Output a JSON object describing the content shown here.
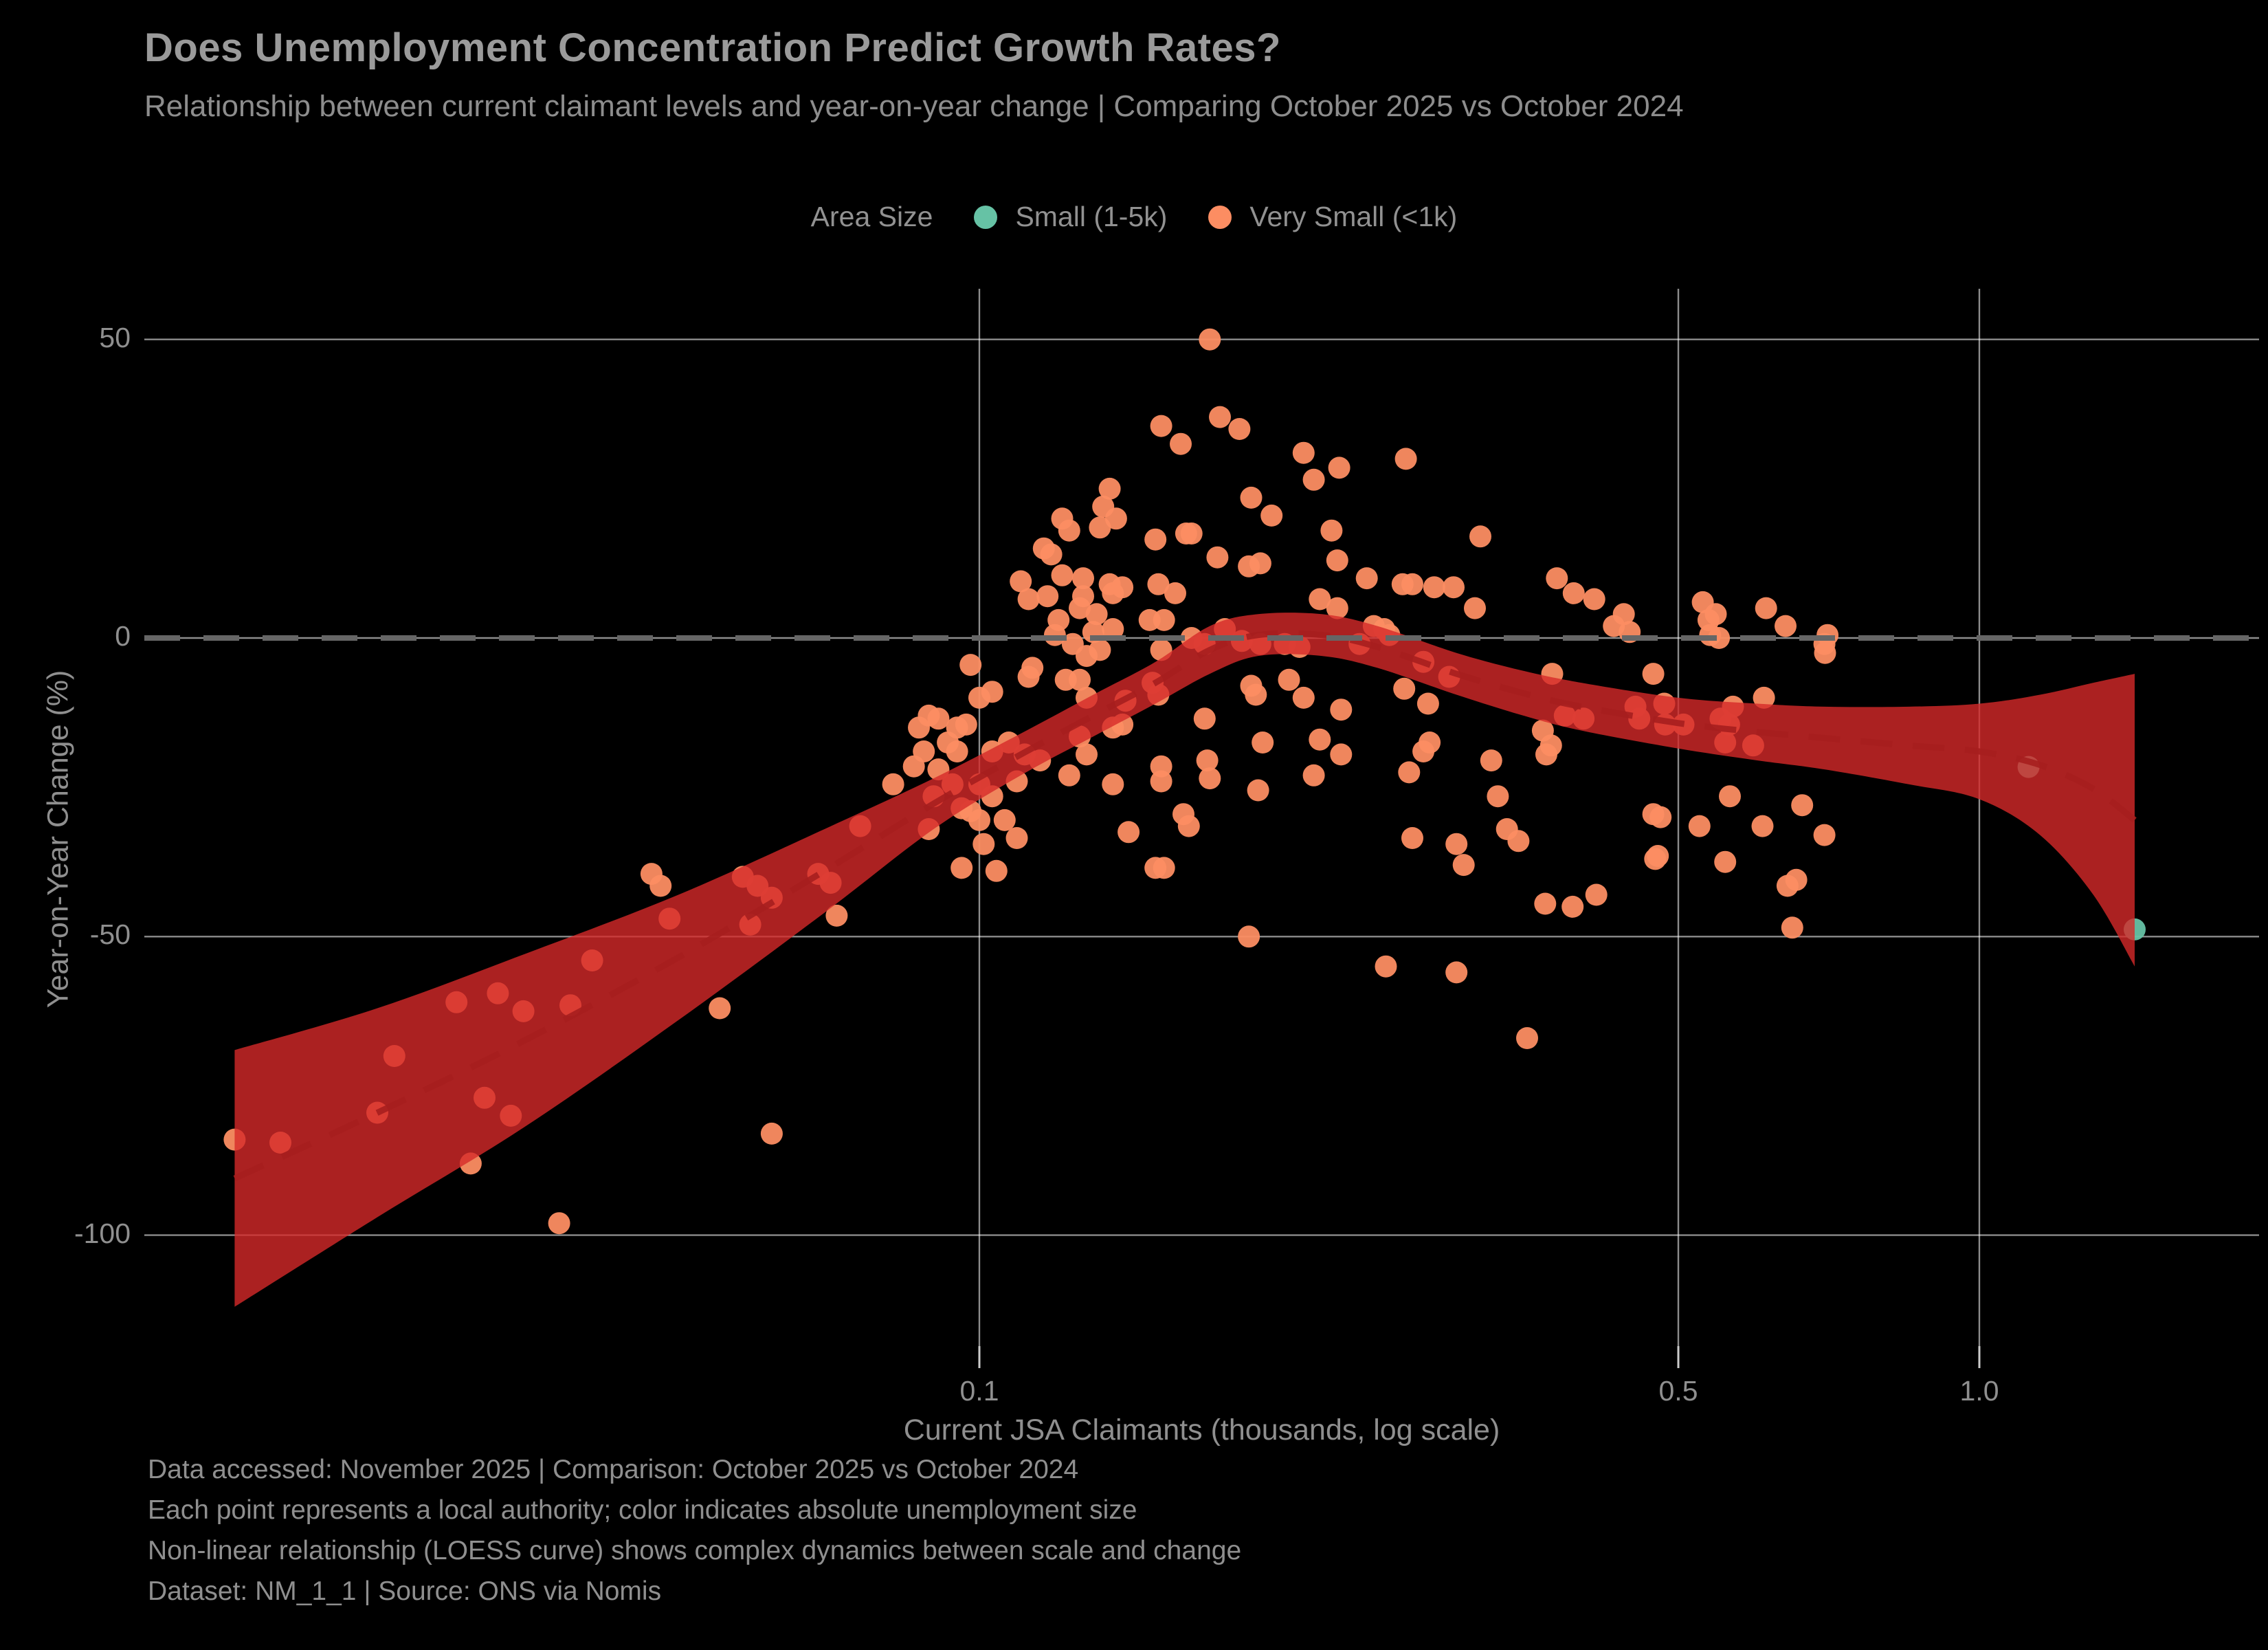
{
  "header": {
    "title": "Does Unemployment Concentration Predict Growth Rates?",
    "subtitle": "Relationship between current claimant levels and year-on-year change | Comparing October 2025 vs October 2024"
  },
  "legend": {
    "title": "Area Size",
    "items": [
      {
        "label": "Small (1-5k)",
        "color": "#66C2A5"
      },
      {
        "label": "Very Small (<1k)",
        "color": "#FC8D62"
      }
    ]
  },
  "footer": {
    "lines": [
      "Data accessed: November 2025 | Comparison: October 2025 vs October 2024",
      "Each point represents a local authority; color indicates absolute unemployment size",
      "Non-linear relationship (LOESS curve) shows complex dynamics between scale and change",
      "Dataset: NM_1_1 | Source: ONS via Nomis"
    ]
  },
  "chart_data": {
    "type": "scatter",
    "title": "Does Unemployment Concentration Predict Growth Rates?",
    "xlabel": "Current JSA Claimants (thousands, log scale)",
    "ylabel": "Year-on-Year Change (%)",
    "x_scale": "log",
    "xlim": [
      0.0146,
      1.9
    ],
    "ylim": [
      -118,
      58
    ],
    "grid": true,
    "zero_line": true,
    "x_ticks": [
      {
        "v": 0.1,
        "label": "0.1"
      },
      {
        "v": 0.5,
        "label": "0.5"
      },
      {
        "v": 1.0,
        "label": "1.0"
      }
    ],
    "y_ticks": [
      {
        "v": 50,
        "label": "50"
      },
      {
        "v": 0,
        "label": "0"
      },
      {
        "v": -50,
        "label": "-50"
      },
      {
        "v": -100,
        "label": "-100"
      }
    ],
    "colors": {
      "band": "#D62929",
      "band_center": "#A61E1E",
      "grid": "#FFFFFF",
      "zero_dash": "#666666"
    },
    "series": [
      {
        "name": "Small (1-5k)",
        "color": "#66C2A5",
        "points": [
          [
            1.12,
            -21.6
          ],
          [
            1.43,
            -48.8
          ]
        ]
      },
      {
        "name": "Very Small (<1k)",
        "color": "#FC8D62",
        "points": [
          [
            0.018,
            -84
          ],
          [
            0.02,
            -84.5
          ],
          [
            0.025,
            -79.5
          ],
          [
            0.026,
            -70
          ],
          [
            0.03,
            -61
          ],
          [
            0.031,
            -88
          ],
          [
            0.033,
            -59.5
          ],
          [
            0.035,
            -62.5
          ],
          [
            0.032,
            -77
          ],
          [
            0.034,
            -80
          ],
          [
            0.038,
            -98
          ],
          [
            0.039,
            -61.5
          ],
          [
            0.041,
            -54
          ],
          [
            0.047,
            -39.5
          ],
          [
            0.048,
            -41.5
          ],
          [
            0.049,
            -47
          ],
          [
            0.055,
            -62
          ],
          [
            0.058,
            -40
          ],
          [
            0.06,
            -41.5
          ],
          [
            0.062,
            -43.5
          ],
          [
            0.059,
            -48
          ],
          [
            0.062,
            -83
          ],
          [
            0.069,
            -39.5
          ],
          [
            0.071,
            -41
          ],
          [
            0.072,
            -46.5
          ],
          [
            0.076,
            -31.5
          ],
          [
            0.082,
            -24.5
          ],
          [
            0.086,
            -21.5
          ],
          [
            0.087,
            -15
          ],
          [
            0.088,
            -19
          ],
          [
            0.089,
            -13
          ],
          [
            0.089,
            -32
          ],
          [
            0.091,
            -13.5
          ],
          [
            0.09,
            -26.5
          ],
          [
            0.091,
            -22
          ],
          [
            0.093,
            -17.5
          ],
          [
            0.094,
            -24.5
          ],
          [
            0.095,
            -15
          ],
          [
            0.095,
            -19
          ],
          [
            0.096,
            -28.5
          ],
          [
            0.097,
            -14.5
          ],
          [
            0.1,
            -24.5
          ],
          [
            0.098,
            -4.5
          ],
          [
            0.098,
            -29
          ],
          [
            0.1,
            -10
          ],
          [
            0.1,
            -30.5
          ],
          [
            0.101,
            -34.5
          ],
          [
            0.103,
            -9
          ],
          [
            0.103,
            -19
          ],
          [
            0.103,
            -26.5
          ],
          [
            0.104,
            -39
          ],
          [
            0.096,
            -38.5
          ],
          [
            0.106,
            -30.5
          ],
          [
            0.107,
            -17.5
          ],
          [
            0.109,
            -24
          ],
          [
            0.109,
            -33.5
          ],
          [
            0.111,
            -19.5
          ],
          [
            0.115,
            -20.5
          ],
          [
            0.11,
            9.5
          ],
          [
            0.112,
            6.5
          ],
          [
            0.113,
            -5
          ],
          [
            0.112,
            -6.5
          ],
          [
            0.116,
            15
          ],
          [
            0.117,
            7
          ],
          [
            0.118,
            14
          ],
          [
            0.119,
            0.5
          ],
          [
            0.12,
            3
          ],
          [
            0.121,
            20
          ],
          [
            0.121,
            10.5
          ],
          [
            0.122,
            -7
          ],
          [
            0.123,
            -23
          ],
          [
            0.123,
            18
          ],
          [
            0.124,
            -1
          ],
          [
            0.126,
            5
          ],
          [
            0.126,
            -7
          ],
          [
            0.126,
            -16.5
          ],
          [
            0.127,
            10
          ],
          [
            0.127,
            7
          ],
          [
            0.128,
            -19.5
          ],
          [
            0.128,
            -3
          ],
          [
            0.128,
            -10
          ],
          [
            0.13,
            1
          ],
          [
            0.131,
            4
          ],
          [
            0.132,
            18.5
          ],
          [
            0.132,
            -2
          ],
          [
            0.133,
            22
          ],
          [
            0.135,
            25
          ],
          [
            0.135,
            9
          ],
          [
            0.136,
            7.5
          ],
          [
            0.136,
            1.5
          ],
          [
            0.136,
            -15
          ],
          [
            0.136,
            -24.5
          ],
          [
            0.137,
            20
          ],
          [
            0.139,
            8.5
          ],
          [
            0.139,
            -14.5
          ],
          [
            0.14,
            -10.5
          ],
          [
            0.141,
            -32.5
          ],
          [
            0.148,
            3
          ],
          [
            0.149,
            -7.5
          ],
          [
            0.15,
            16.5
          ],
          [
            0.15,
            -38.5
          ],
          [
            0.151,
            9
          ],
          [
            0.151,
            -9.5
          ],
          [
            0.152,
            35.5
          ],
          [
            0.152,
            -2
          ],
          [
            0.153,
            3
          ],
          [
            0.153,
            -38.5
          ],
          [
            0.152,
            -21.5
          ],
          [
            0.152,
            -24
          ],
          [
            0.157,
            7.5
          ],
          [
            0.159,
            32.5
          ],
          [
            0.161,
            17.5
          ],
          [
            0.16,
            -29.5
          ],
          [
            0.162,
            -31.5
          ],
          [
            0.163,
            17.5
          ],
          [
            0.163,
            0
          ],
          [
            0.168,
            -1
          ],
          [
            0.168,
            -13.5
          ],
          [
            0.169,
            -20.5
          ],
          [
            0.17,
            -23.5
          ],
          [
            0.17,
            50
          ],
          [
            0.173,
            13.5
          ],
          [
            0.174,
            37
          ],
          [
            0.176,
            1.5
          ],
          [
            0.182,
            35
          ],
          [
            0.183,
            -0.5
          ],
          [
            0.186,
            12
          ],
          [
            0.186,
            -50
          ],
          [
            0.187,
            23.5
          ],
          [
            0.187,
            -8
          ],
          [
            0.189,
            -9.5
          ],
          [
            0.191,
            12.5
          ],
          [
            0.191,
            -1
          ],
          [
            0.19,
            -25.5
          ],
          [
            0.192,
            -17.5
          ],
          [
            0.196,
            20.5
          ],
          [
            0.202,
            -1
          ],
          [
            0.204,
            -7
          ],
          [
            0.209,
            -1.5
          ],
          [
            0.211,
            31
          ],
          [
            0.211,
            -10
          ],
          [
            0.216,
            26.5
          ],
          [
            0.216,
            -23
          ],
          [
            0.219,
            6.5
          ],
          [
            0.219,
            -17
          ],
          [
            0.225,
            18
          ],
          [
            0.228,
            13
          ],
          [
            0.228,
            5
          ],
          [
            0.229,
            28.5
          ],
          [
            0.23,
            -12
          ],
          [
            0.23,
            -19.5
          ],
          [
            0.24,
            -1
          ],
          [
            0.244,
            10
          ],
          [
            0.248,
            2
          ],
          [
            0.254,
            1.5
          ],
          [
            0.255,
            -55
          ],
          [
            0.257,
            0.5
          ],
          [
            0.265,
            9
          ],
          [
            0.266,
            -8.5
          ],
          [
            0.267,
            30
          ],
          [
            0.269,
            -22.5
          ],
          [
            0.271,
            9
          ],
          [
            0.271,
            -33.5
          ],
          [
            0.278,
            -4
          ],
          [
            0.278,
            -19
          ],
          [
            0.281,
            -11
          ],
          [
            0.282,
            -17.5
          ],
          [
            0.285,
            8.5
          ],
          [
            0.295,
            -6.5
          ],
          [
            0.298,
            8.5
          ],
          [
            0.3,
            -34.5
          ],
          [
            0.3,
            -56
          ],
          [
            0.305,
            -38
          ],
          [
            0.313,
            5
          ],
          [
            0.317,
            17
          ],
          [
            0.325,
            -20.5
          ],
          [
            0.33,
            -26.5
          ],
          [
            0.337,
            -32
          ],
          [
            0.346,
            -34
          ],
          [
            0.353,
            -67
          ],
          [
            0.366,
            -15.5
          ],
          [
            0.368,
            -44.5
          ],
          [
            0.369,
            -19.5
          ],
          [
            0.373,
            -18
          ],
          [
            0.374,
            -6
          ],
          [
            0.378,
            10
          ],
          [
            0.385,
            -13
          ],
          [
            0.392,
            -45
          ],
          [
            0.393,
            7.5
          ],
          [
            0.402,
            -13.5
          ],
          [
            0.412,
            6.5
          ],
          [
            0.414,
            -43
          ],
          [
            0.431,
            2
          ],
          [
            0.441,
            4
          ],
          [
            0.447,
            1
          ],
          [
            0.453,
            -11.5
          ],
          [
            0.457,
            -13.5
          ],
          [
            0.472,
            -6
          ],
          [
            0.472,
            -29.5
          ],
          [
            0.474,
            -37
          ],
          [
            0.477,
            -36.5
          ],
          [
            0.48,
            -30
          ],
          [
            0.484,
            -11
          ],
          [
            0.485,
            -14.5
          ],
          [
            0.506,
            -14.5
          ],
          [
            0.525,
            -31.5
          ],
          [
            0.529,
            6
          ],
          [
            0.536,
            3
          ],
          [
            0.545,
            4
          ],
          [
            0.538,
            0.5
          ],
          [
            0.549,
            0
          ],
          [
            0.551,
            -13.5
          ],
          [
            0.557,
            -37.5
          ],
          [
            0.562,
            -14.5
          ],
          [
            0.557,
            -17.5
          ],
          [
            0.563,
            -26.5
          ],
          [
            0.567,
            -11.5
          ],
          [
            0.594,
            -18
          ],
          [
            0.607,
            -31.5
          ],
          [
            0.609,
            -10
          ],
          [
            0.612,
            5
          ],
          [
            0.64,
            2
          ],
          [
            0.643,
            -41.5
          ],
          [
            0.656,
            -40.5
          ],
          [
            0.65,
            -48.5
          ],
          [
            0.665,
            -28
          ],
          [
            0.7,
            -33
          ],
          [
            0.7,
            -1
          ],
          [
            0.701,
            -2.5
          ],
          [
            0.705,
            0.5
          ]
        ]
      }
    ],
    "loess_band": [
      {
        "x": 0.018,
        "upper": -69,
        "lower": -112
      },
      {
        "x": 0.025,
        "upper": -62,
        "lower": -97
      },
      {
        "x": 0.035,
        "upper": -53,
        "lower": -82
      },
      {
        "x": 0.05,
        "upper": -43,
        "lower": -64
      },
      {
        "x": 0.07,
        "upper": -32,
        "lower": -46
      },
      {
        "x": 0.09,
        "upper": -23.5,
        "lower": -32
      },
      {
        "x": 0.11,
        "upper": -16,
        "lower": -23
      },
      {
        "x": 0.13,
        "upper": -9.5,
        "lower": -16.5
      },
      {
        "x": 0.15,
        "upper": -4,
        "lower": -11
      },
      {
        "x": 0.17,
        "upper": 2,
        "lower": -6
      },
      {
        "x": 0.19,
        "upper": 4,
        "lower": -3
      },
      {
        "x": 0.22,
        "upper": 4,
        "lower": -3
      },
      {
        "x": 0.25,
        "upper": 2,
        "lower": -5
      },
      {
        "x": 0.3,
        "upper": -2.5,
        "lower": -9.5
      },
      {
        "x": 0.35,
        "upper": -5.5,
        "lower": -13
      },
      {
        "x": 0.4,
        "upper": -7.5,
        "lower": -15.5
      },
      {
        "x": 0.5,
        "upper": -10,
        "lower": -18.5
      },
      {
        "x": 0.6,
        "upper": -11,
        "lower": -20.5
      },
      {
        "x": 0.7,
        "upper": -11.5,
        "lower": -22
      },
      {
        "x": 0.85,
        "upper": -11.5,
        "lower": -24.5
      },
      {
        "x": 1.0,
        "upper": -11,
        "lower": -27
      },
      {
        "x": 1.15,
        "upper": -9.5,
        "lower": -33
      },
      {
        "x": 1.3,
        "upper": -7.5,
        "lower": -43
      },
      {
        "x": 1.43,
        "upper": -6,
        "lower": -55
      }
    ]
  }
}
